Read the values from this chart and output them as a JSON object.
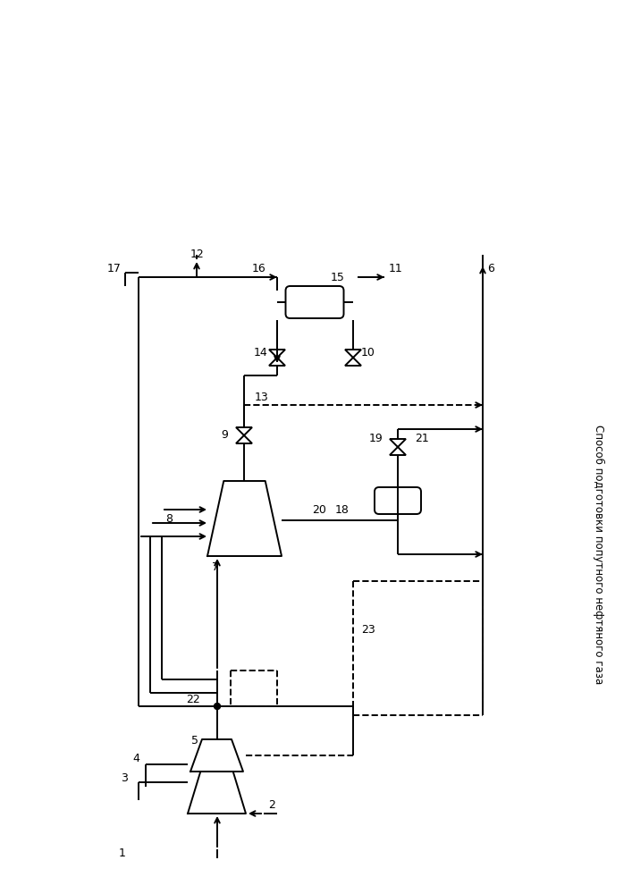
{
  "title": "Способ подготовки попутного нефтяного газа",
  "bg_color": "#ffffff",
  "line_color": "#000000",
  "figsize": [
    7.07,
    10.0
  ],
  "dpi": 100
}
